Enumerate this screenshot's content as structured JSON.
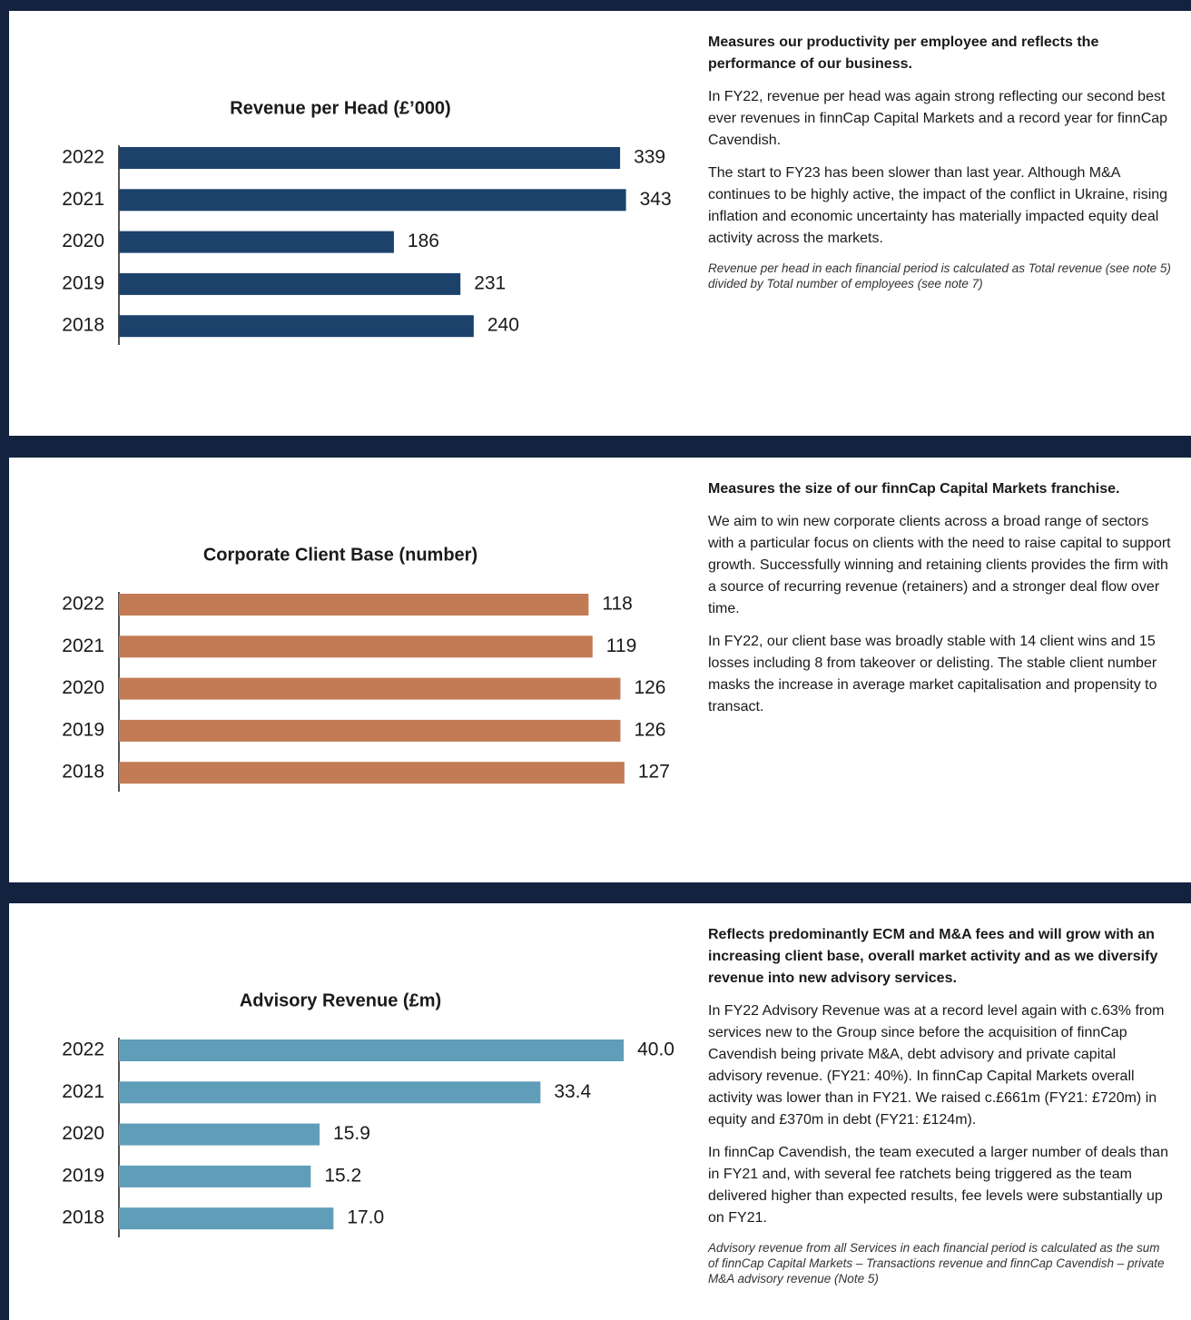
{
  "chart_data": [
    {
      "type": "bar",
      "title": "Revenue per Head (£’000)",
      "categories": [
        "2022",
        "2021",
        "2020",
        "2019",
        "2018"
      ],
      "values": [
        339,
        343,
        186,
        231,
        240
      ],
      "color": "#1c416b",
      "xlim": [
        0,
        350
      ]
    },
    {
      "type": "bar",
      "title": "Corporate Client Base (number)",
      "categories": [
        "2022",
        "2021",
        "2020",
        "2019",
        "2018"
      ],
      "values": [
        118,
        119,
        126,
        126,
        127
      ],
      "color": "#c27b55",
      "xlim": [
        0,
        130
      ]
    },
    {
      "type": "bar",
      "title": "Advisory Revenue (£m)",
      "categories": [
        "2022",
        "2021",
        "2020",
        "2019",
        "2018"
      ],
      "values": [
        40.0,
        33.4,
        15.9,
        15.2,
        17.0
      ],
      "value_labels": [
        "40.0",
        "33.4",
        "15.9",
        "15.2",
        "17.0"
      ],
      "color": "#5f9db9",
      "xlim": [
        0,
        41
      ]
    }
  ],
  "text_panels": [
    {
      "heading": "Measures our productivity per employee and reflects the performance of our business.",
      "paragraphs": [
        "In FY22, revenue per head was again strong reflecting our second best ever revenues in finnCap Capital Markets and a record year for finnCap Cavendish.",
        "The start to FY23 has been slower than last year. Although M&A continues to be highly active, the impact of the conflict in Ukraine, rising inflation and economic uncertainty has materially impacted equity deal activity across the markets."
      ],
      "note": "Revenue per head in each financial period is calculated as Total revenue (see note 5) divided by Total number of employees (see note 7)"
    },
    {
      "heading": "Measures the size of our finnCap Capital Markets franchise.",
      "paragraphs": [
        "We aim to win new corporate clients across a broad range of sectors with a particular focus on clients with the need to raise capital to support growth. Successfully winning and retaining clients provides the firm with a source of recurring revenue (retainers) and a stronger deal flow over time.",
        "In FY22, our client base was broadly stable with 14 client wins and 15 losses including 8 from takeover or delisting. The stable client number masks the increase in average market capitalisation and propensity to transact."
      ]
    },
    {
      "heading": "Reflects predominantly ECM and M&A fees and will grow with an increasing client base, overall market activity and as we diversify revenue into new advisory services.",
      "paragraphs": [
        "In FY22 Advisory Revenue was at a record level again with c.63% from services new to the Group since before the acquisition of finnCap Cavendish being private M&A, debt advisory and private capital advisory revenue. (FY21: 40%). In finnCap Capital Markets overall activity was lower than in FY21. We raised c.£661m (FY21: £720m) in equity and £370m in debt (FY21: £124m).",
        "In finnCap Cavendish, the team executed a larger number of deals than in FY21 and, with several fee ratchets being triggered as the team delivered higher than expected results, fee levels were substantially up on FY21."
      ],
      "note": "Advisory revenue from all Services in each financial period is calculated as the sum of finnCap Capital Markets – Transactions revenue and finnCap Cavendish – private M&A advisory revenue (Note 5)"
    }
  ]
}
